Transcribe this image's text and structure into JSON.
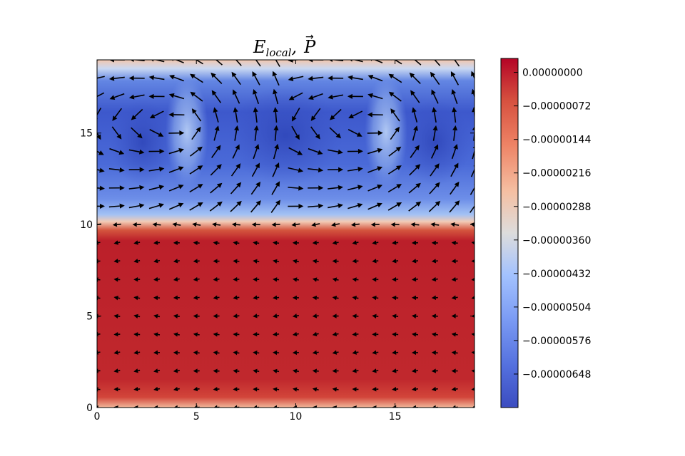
{
  "chart_data": {
    "type": "heatmap",
    "title": "E_local, P",
    "title_main": "E",
    "title_sub": "local",
    "title_sep": ",",
    "title_vec": "P",
    "title_vec_accent": "→",
    "xlim": [
      0,
      19
    ],
    "ylim": [
      0,
      19
    ],
    "x_ticks": [
      0,
      5,
      10,
      15
    ],
    "y_ticks": [
      0,
      5,
      10,
      15
    ],
    "x_tick_labels": [
      "0",
      "5",
      "10",
      "15"
    ],
    "y_tick_labels": [
      "0",
      "5",
      "10",
      "15"
    ],
    "colormap": "coolwarm",
    "color_range": [
      -7.2e-06,
      3e-07
    ],
    "colorbar_ticks": [
      0.0,
      -7.2e-07,
      -1.44e-06,
      -2.16e-06,
      -2.88e-06,
      -3.6e-06,
      -4.32e-06,
      -5.04e-06,
      -5.76e-06,
      -6.48e-06
    ],
    "colorbar_labels": [
      "0.00000000",
      "−0.00000072",
      "−0.00000144",
      "−0.00000216",
      "−0.00000288",
      "−0.00000360",
      "−0.00000432",
      "−0.00000504",
      "−0.00000576",
      "−0.00000648"
    ],
    "field_regions": [
      {
        "y_range": [
          0,
          10.5
        ],
        "value_approx": -1e-07
      },
      {
        "y_range": [
          10.5,
          19
        ],
        "value_approx": -6e-06
      }
    ],
    "quiver": {
      "grid_x_range": [
        0,
        19
      ],
      "grid_y_range": [
        0,
        19
      ],
      "spacing": 1,
      "vortex_centers": [
        [
          4.5,
          15.5
        ],
        [
          14.5,
          15.5
        ]
      ],
      "arrow_color": "#000000"
    },
    "grid": false,
    "legend": "none"
  },
  "colors": {
    "arrow": "#000000",
    "axes_frame": "#000000"
  }
}
